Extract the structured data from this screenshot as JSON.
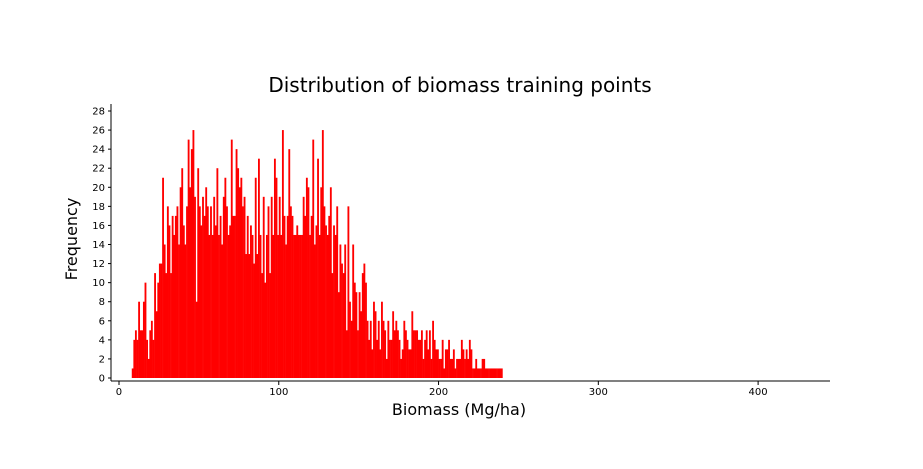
{
  "chart_data": {
    "type": "bar",
    "title": "Distribution of biomass training points",
    "xlabel": "Biomass (Mg/ha)",
    "ylabel": "Frequency",
    "xlim": [
      -5,
      445
    ],
    "ylim": [
      0,
      28
    ],
    "xticks": [
      0,
      100,
      200,
      300,
      400
    ],
    "yticks": [
      0,
      2,
      4,
      6,
      8,
      10,
      12,
      14,
      16,
      18,
      20,
      22,
      24,
      26,
      28
    ],
    "grid": false,
    "bar_color": "#ff0000",
    "bin_width": 1,
    "bin_start": 8,
    "values": [
      1,
      4,
      5,
      4,
      8,
      5,
      5,
      8,
      10,
      4,
      2,
      5,
      6,
      4,
      11,
      7,
      10,
      12,
      12,
      21,
      14,
      11,
      18,
      16,
      11,
      17,
      15,
      17,
      18,
      14,
      20,
      22,
      16,
      14,
      18,
      25,
      20,
      24,
      26,
      19,
      8,
      22,
      18,
      16,
      19,
      17,
      20,
      18,
      15,
      18,
      15,
      19,
      16,
      22,
      15,
      17,
      14,
      19,
      21,
      18,
      15,
      16,
      25,
      17,
      17,
      24,
      22,
      20,
      21,
      18,
      19,
      13,
      17,
      13,
      16,
      15,
      12,
      21,
      13,
      23,
      15,
      11,
      19,
      10,
      15,
      18,
      11,
      19,
      15,
      23,
      21,
      15,
      19,
      15,
      26,
      17,
      14,
      17,
      24,
      18,
      17,
      15,
      15,
      16,
      15,
      15,
      15,
      19,
      17,
      21,
      20,
      15,
      17,
      25,
      14,
      16,
      23,
      15,
      20,
      26,
      18,
      16,
      15,
      17,
      20,
      11,
      16,
      15,
      18,
      9,
      14,
      12,
      11,
      14,
      5,
      18,
      8,
      6,
      14,
      10,
      9,
      5,
      9,
      7,
      11,
      12,
      10,
      6,
      4,
      6,
      3,
      8,
      7,
      4,
      6,
      3,
      8,
      6,
      5,
      2,
      6,
      4,
      4,
      7,
      5,
      6,
      5,
      4,
      2,
      3,
      6,
      5,
      4,
      3,
      3,
      7,
      5,
      5,
      5,
      4,
      4,
      5,
      2,
      4,
      5,
      3,
      5,
      2,
      6,
      4,
      3,
      3,
      2,
      2,
      4,
      1,
      3,
      3,
      4,
      2,
      2,
      3,
      1,
      2,
      2,
      2,
      4,
      3,
      2,
      3,
      2,
      4,
      3,
      1,
      1,
      2,
      1,
      1,
      1,
      2,
      2,
      1,
      1,
      1,
      1,
      1,
      1,
      1,
      1,
      1,
      1,
      1,
      0
    ]
  }
}
